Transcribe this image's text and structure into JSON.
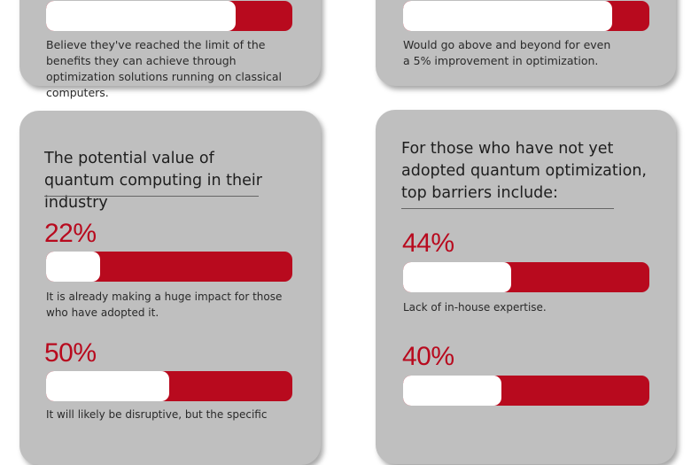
{
  "colors": {
    "card": "#bfbfbf",
    "accent": "#b80a1e",
    "bar_track": "#ffffff"
  },
  "cards": [
    {
      "stats": [
        {
          "fill": 0.77,
          "description": "Believe they've reached the limit of the benefits they can achieve through optimization solutions running on classical computers."
        }
      ]
    },
    {
      "stats": [
        {
          "fill": 0.85,
          "description": "Would go above and beyond for even a 5% improvement in optimization."
        }
      ]
    },
    {
      "heading": "The potential value of quantum computing in their industry",
      "stats": [
        {
          "value": "22%",
          "fill": 0.22,
          "description": "It is already making a huge impact for those who have adopted it."
        },
        {
          "value": "50%",
          "fill": 0.5,
          "description": "It will likely be disruptive, but the specific"
        }
      ]
    },
    {
      "heading": "For those who have not yet adopted quantum optimization, top barriers include:",
      "stats": [
        {
          "value": "44%",
          "fill": 0.44,
          "description": "Lack of in-house expertise."
        },
        {
          "value": "40%",
          "fill": 0.4,
          "description": ""
        }
      ]
    }
  ]
}
